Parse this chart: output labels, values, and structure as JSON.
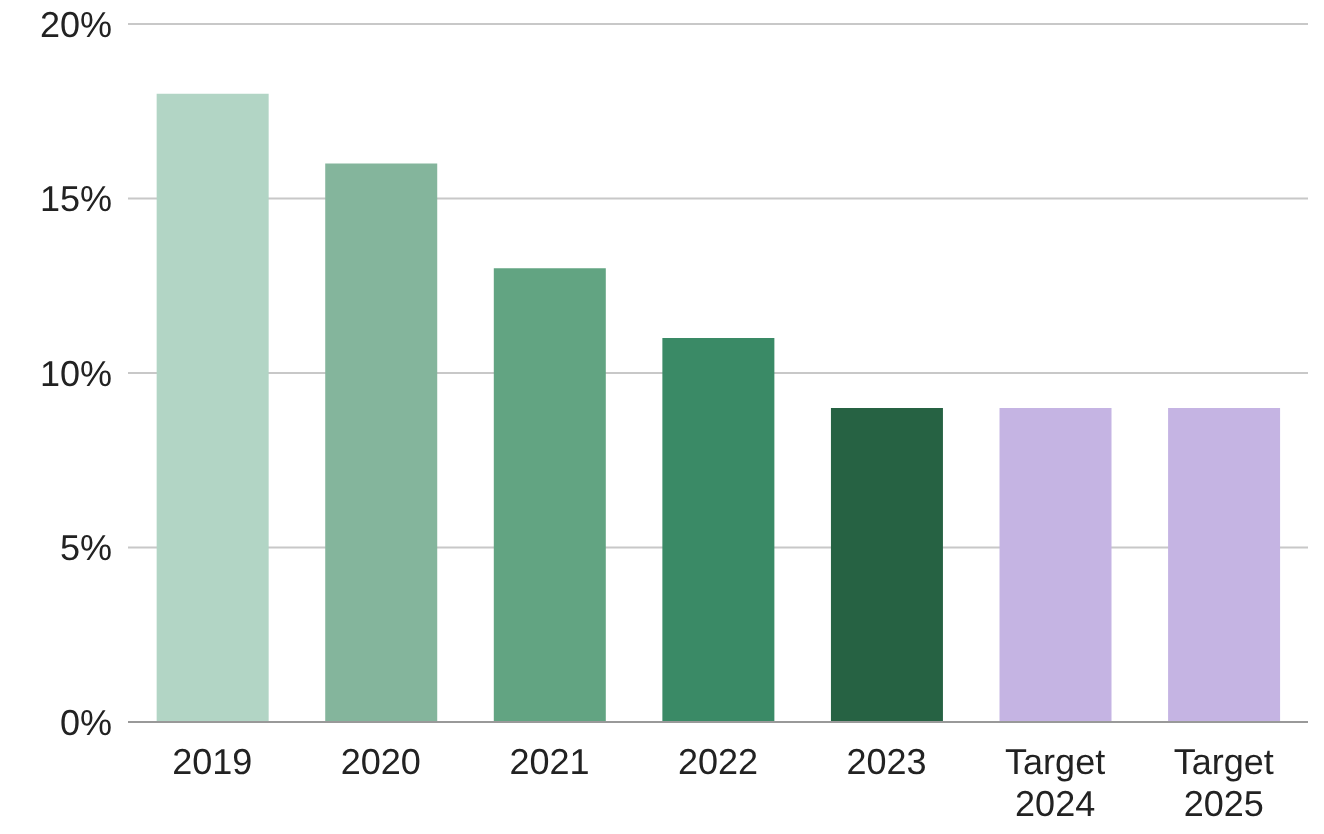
{
  "chart_data": {
    "type": "bar",
    "categories": [
      "2019",
      "2020",
      "2021",
      "2022",
      "2023",
      "Target 2024",
      "Target 2025"
    ],
    "values": [
      18,
      16,
      13,
      11,
      9,
      9,
      9
    ],
    "colors": [
      "#b2d5c5",
      "#84b59c",
      "#62a482",
      "#3a8a66",
      "#266243",
      "#c5b4e3",
      "#c5b4e3"
    ],
    "ylim": [
      0,
      20
    ],
    "yticks": [
      {
        "value": 0,
        "label": "0%"
      },
      {
        "value": 5,
        "label": "5%"
      },
      {
        "value": 10,
        "label": "10%"
      },
      {
        "value": 15,
        "label": "15%"
      },
      {
        "value": 20,
        "label": "20%"
      }
    ],
    "grid": "y"
  }
}
